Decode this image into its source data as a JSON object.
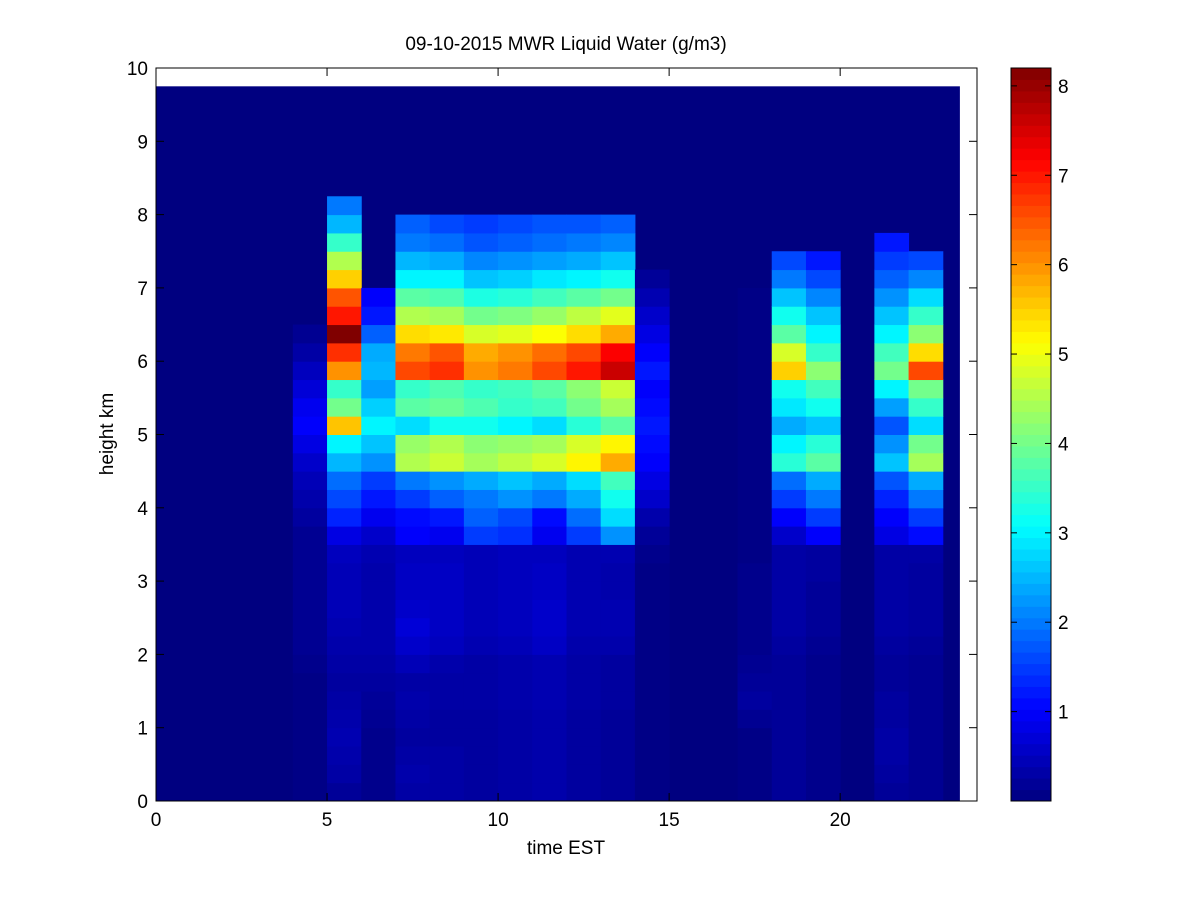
{
  "chart_data": {
    "type": "heatmap",
    "title": "09-10-2015 MWR Liquid Water (g/m3)",
    "xlabel": "time EST",
    "ylabel": "height km",
    "xlim": [
      0,
      24
    ],
    "ylim": [
      0,
      10
    ],
    "x_ticks": [
      0,
      5,
      10,
      15,
      20
    ],
    "y_ticks": [
      0,
      1,
      2,
      3,
      4,
      5,
      6,
      7,
      8,
      9,
      10
    ],
    "colorbar": {
      "min": 0,
      "max": 8.2,
      "ticks": [
        1,
        2,
        3,
        4,
        5,
        6,
        7,
        8
      ],
      "colormap": "jet"
    },
    "data_extent": {
      "x": [
        0,
        23.5
      ],
      "y": [
        0,
        9.75
      ]
    },
    "column_width": 1,
    "row_height": 0.25,
    "columns": [
      {
        "x": 4.5,
        "values": [
          0.05,
          0.05,
          0.05,
          0.05,
          0.05,
          0.05,
          0.05,
          0.1,
          0.15,
          0.15,
          0.15,
          0.15,
          0.15,
          0.15,
          0.15,
          0.25,
          0.35,
          0.45,
          0.6,
          0.8,
          1.0,
          0.9,
          0.7,
          0.5,
          0.3,
          0.15
        ]
      },
      {
        "x": 5.5,
        "values": [
          0.2,
          0.3,
          0.35,
          0.4,
          0.35,
          0.3,
          0.25,
          0.3,
          0.35,
          0.4,
          0.45,
          0.45,
          0.45,
          0.5,
          0.8,
          1.3,
          1.6,
          1.9,
          2.5,
          3.0,
          5.6,
          4.0,
          3.5,
          6.0,
          6.8,
          8.2,
          7.0,
          6.5,
          5.5,
          4.5,
          3.5,
          2.5,
          2.0
        ]
      },
      {
        "x": 6.5,
        "values": [
          0.1,
          0.1,
          0.1,
          0.1,
          0.15,
          0.2,
          0.25,
          0.3,
          0.35,
          0.35,
          0.35,
          0.35,
          0.35,
          0.4,
          0.6,
          0.9,
          1.2,
          1.5,
          2.2,
          2.6,
          3.0,
          2.7,
          2.3,
          2.5,
          2.4,
          1.8,
          1.2,
          1.0
        ]
      },
      {
        "x": 7.5,
        "values": [
          0.3,
          0.35,
          0.3,
          0.25,
          0.3,
          0.35,
          0.3,
          0.45,
          0.6,
          0.7,
          0.6,
          0.55,
          0.55,
          0.5,
          1.0,
          1.1,
          1.5,
          2.0,
          4.5,
          4.3,
          2.8,
          3.8,
          3.5,
          6.6,
          6.2,
          5.4,
          4.5,
          3.8,
          3.0,
          2.5,
          2.0,
          1.8
        ]
      },
      {
        "x": 8.5,
        "values": [
          0.3,
          0.3,
          0.3,
          0.25,
          0.25,
          0.3,
          0.3,
          0.35,
          0.5,
          0.55,
          0.55,
          0.55,
          0.55,
          0.5,
          0.9,
          1.2,
          1.8,
          2.2,
          4.7,
          4.5,
          3.2,
          3.9,
          3.7,
          6.8,
          6.5,
          5.3,
          4.4,
          3.7,
          3.0,
          2.4,
          1.9,
          1.6
        ]
      },
      {
        "x": 9.5,
        "values": [
          0.25,
          0.25,
          0.25,
          0.25,
          0.25,
          0.3,
          0.3,
          0.3,
          0.4,
          0.45,
          0.45,
          0.45,
          0.45,
          0.45,
          1.5,
          1.8,
          2.0,
          2.4,
          4.4,
          4.2,
          3.2,
          3.7,
          3.5,
          6.0,
          5.8,
          4.8,
          4.0,
          3.3,
          2.6,
          2.1,
          1.7,
          1.5
        ]
      },
      {
        "x": 10.5,
        "values": [
          0.3,
          0.3,
          0.3,
          0.3,
          0.3,
          0.35,
          0.35,
          0.35,
          0.45,
          0.5,
          0.5,
          0.5,
          0.5,
          0.5,
          1.4,
          1.6,
          2.2,
          2.6,
          4.6,
          4.3,
          3.0,
          3.5,
          3.6,
          6.2,
          6.0,
          4.9,
          4.1,
          3.4,
          2.7,
          2.2,
          1.8,
          1.6
        ]
      },
      {
        "x": 11.5,
        "values": [
          0.35,
          0.35,
          0.35,
          0.35,
          0.35,
          0.4,
          0.4,
          0.4,
          0.55,
          0.6,
          0.6,
          0.55,
          0.55,
          0.5,
          0.9,
          1.1,
          2.0,
          2.4,
          4.8,
          4.4,
          2.8,
          3.6,
          3.8,
          6.6,
          6.3,
          5.1,
          4.3,
          3.6,
          2.9,
          2.3,
          1.9,
          1.7
        ]
      },
      {
        "x": 12.5,
        "values": [
          0.25,
          0.25,
          0.25,
          0.25,
          0.25,
          0.3,
          0.3,
          0.3,
          0.35,
          0.4,
          0.4,
          0.4,
          0.4,
          0.4,
          1.5,
          1.9,
          2.4,
          2.8,
          5.2,
          4.8,
          3.4,
          4.0,
          4.2,
          7.0,
          6.6,
          5.4,
          4.6,
          3.8,
          3.0,
          2.4,
          2.0,
          1.7
        ]
      },
      {
        "x": 13.5,
        "values": [
          0.2,
          0.2,
          0.2,
          0.2,
          0.2,
          0.25,
          0.25,
          0.25,
          0.35,
          0.4,
          0.4,
          0.35,
          0.35,
          0.4,
          2.2,
          2.8,
          3.2,
          3.6,
          5.8,
          5.2,
          3.8,
          4.4,
          4.7,
          7.6,
          7.2,
          5.8,
          4.9,
          4.0,
          3.2,
          2.6,
          2.1,
          1.8
        ]
      },
      {
        "x": 14.5,
        "values": [
          0.05,
          0.05,
          0.05,
          0.05,
          0.05,
          0.05,
          0.05,
          0.05,
          0.05,
          0.05,
          0.05,
          0.05,
          0.05,
          0.1,
          0.2,
          0.35,
          0.6,
          0.8,
          1.0,
          1.1,
          1.2,
          1.1,
          1.0,
          1.2,
          1.0,
          0.8,
          0.6,
          0.4,
          0.2
        ]
      },
      {
        "x": 17.5,
        "values": [
          0.05,
          0.05,
          0.05,
          0.05,
          0.15,
          0.25,
          0.2,
          0.15,
          0.1,
          0.1,
          0.1,
          0.1,
          0.1,
          0.05,
          0.05,
          0.05,
          0.05,
          0.05,
          0.05,
          0.05,
          0.05,
          0.05,
          0.05,
          0.05,
          0.05,
          0.05,
          0.05,
          0.05
        ]
      },
      {
        "x": 18.5,
        "values": [
          0.2,
          0.2,
          0.2,
          0.2,
          0.2,
          0.2,
          0.2,
          0.2,
          0.25,
          0.3,
          0.3,
          0.3,
          0.3,
          0.3,
          0.6,
          1.0,
          1.5,
          1.9,
          3.4,
          3.0,
          2.4,
          2.9,
          3.2,
          5.5,
          4.8,
          3.8,
          3.2,
          2.6,
          2.0,
          1.6
        ]
      },
      {
        "x": 19.5,
        "values": [
          0.1,
          0.1,
          0.1,
          0.1,
          0.1,
          0.1,
          0.1,
          0.1,
          0.15,
          0.2,
          0.2,
          0.2,
          0.25,
          0.25,
          1.0,
          1.5,
          2.0,
          2.4,
          3.8,
          3.4,
          2.6,
          3.2,
          3.6,
          4.2,
          3.5,
          3.0,
          2.6,
          2.1,
          1.6,
          1.2
        ]
      },
      {
        "x": 21.5,
        "values": [
          0.2,
          0.25,
          0.3,
          0.3,
          0.25,
          0.25,
          0.2,
          0.2,
          0.25,
          0.3,
          0.3,
          0.3,
          0.3,
          0.3,
          0.8,
          1.0,
          1.3,
          1.7,
          2.6,
          2.2,
          1.7,
          2.3,
          3.0,
          4.0,
          3.6,
          3.0,
          2.6,
          2.2,
          1.8,
          1.5,
          1.2
        ]
      },
      {
        "x": 22.5,
        "values": [
          0.15,
          0.15,
          0.15,
          0.15,
          0.15,
          0.15,
          0.15,
          0.15,
          0.2,
          0.25,
          0.25,
          0.25,
          0.25,
          0.3,
          1.1,
          1.5,
          2.0,
          2.4,
          4.4,
          4.0,
          2.8,
          3.5,
          4.0,
          6.6,
          5.4,
          4.2,
          3.5,
          2.8,
          2.1,
          1.6
        ]
      }
    ]
  }
}
